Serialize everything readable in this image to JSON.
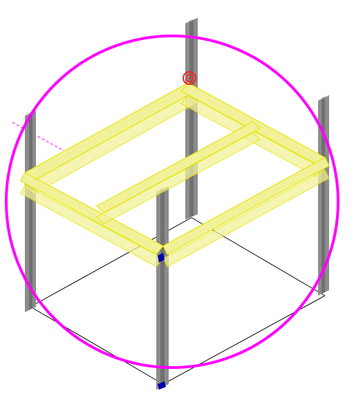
{
  "viewport": {
    "background": "#ffffff",
    "palette": {
      "column_fill": "#8c8c8c",
      "column_dark": "#707070",
      "column_light": "#a8a8a8",
      "beam_selected": "#f1f19a",
      "beam_outline": "#e6e600",
      "selection_circle": "#ff00ff",
      "edge_line": "#000000",
      "grip_marker": "#ff2020",
      "node_marker": "#0000aa",
      "dash_line": "#ff00ff"
    }
  }
}
